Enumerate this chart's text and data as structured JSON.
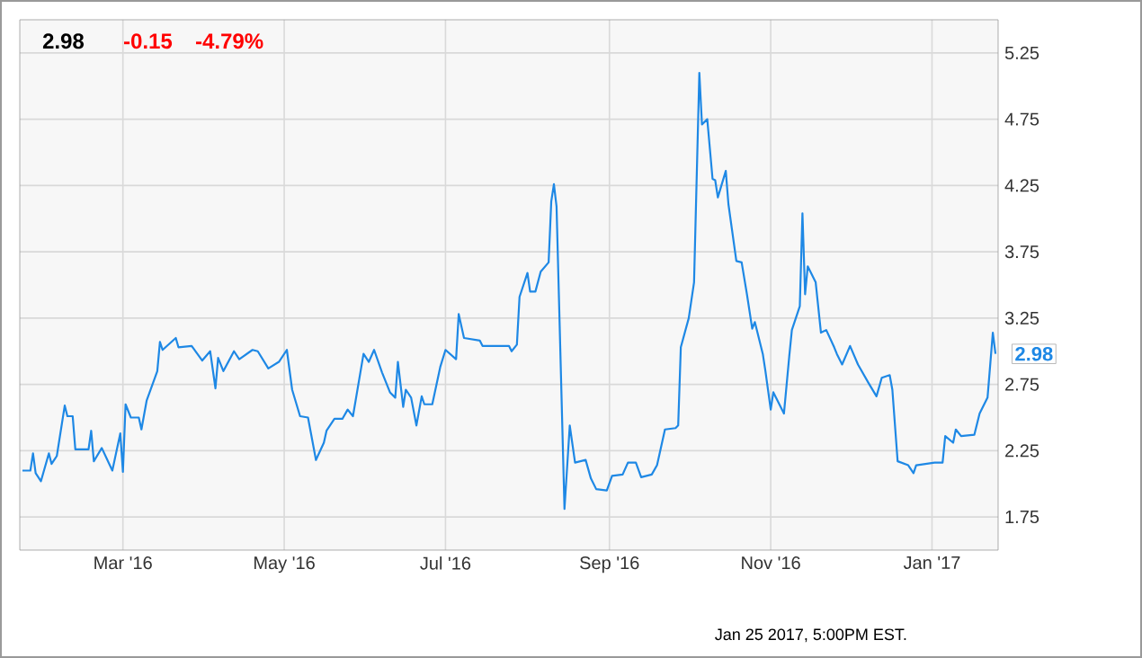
{
  "chart_data": {
    "type": "line",
    "x": [
      "2016-01-23",
      "2016-01-26",
      "2016-01-27",
      "2016-01-28",
      "2016-01-30",
      "2016-02-02",
      "2016-02-03",
      "2016-02-05",
      "2016-02-08",
      "2016-02-09",
      "2016-02-11",
      "2016-02-12",
      "2016-02-17",
      "2016-02-18",
      "2016-02-19",
      "2016-02-22",
      "2016-02-26",
      "2016-02-29",
      "2016-03-01",
      "2016-03-02",
      "2016-03-04",
      "2016-03-07",
      "2016-03-08",
      "2016-03-10",
      "2016-03-14",
      "2016-03-15",
      "2016-03-16",
      "2016-03-21",
      "2016-03-22",
      "2016-03-27",
      "2016-03-31",
      "2016-04-03",
      "2016-04-05",
      "2016-04-06",
      "2016-04-08",
      "2016-04-12",
      "2016-04-14",
      "2016-04-19",
      "2016-04-21",
      "2016-04-25",
      "2016-04-29",
      "2016-05-02",
      "2016-05-04",
      "2016-05-07",
      "2016-05-10",
      "2016-05-13",
      "2016-05-16",
      "2016-05-17",
      "2016-05-20",
      "2016-05-23",
      "2016-05-25",
      "2016-05-27",
      "2016-05-31",
      "2016-06-02",
      "2016-06-04",
      "2016-06-07",
      "2016-06-10",
      "2016-06-12",
      "2016-06-13",
      "2016-06-15",
      "2016-06-16",
      "2016-06-18",
      "2016-06-20",
      "2016-06-22",
      "2016-06-23",
      "2016-06-26",
      "2016-06-29",
      "2016-07-01",
      "2016-07-05",
      "2016-07-06",
      "2016-07-08",
      "2016-07-14",
      "2016-07-15",
      "2016-07-18",
      "2016-07-25",
      "2016-07-26",
      "2016-07-28",
      "2016-07-29",
      "2016-08-01",
      "2016-08-02",
      "2016-08-04",
      "2016-08-06",
      "2016-08-09",
      "2016-08-10",
      "2016-08-11",
      "2016-08-12",
      "2016-08-15",
      "2016-08-17",
      "2016-08-19",
      "2016-08-23",
      "2016-08-25",
      "2016-08-27",
      "2016-08-31",
      "2016-09-02",
      "2016-09-06",
      "2016-09-08",
      "2016-09-11",
      "2016-09-13",
      "2016-09-17",
      "2016-09-19",
      "2016-09-22",
      "2016-09-26",
      "2016-09-27",
      "2016-09-28",
      "2016-10-01",
      "2016-10-03",
      "2016-10-05",
      "2016-10-06",
      "2016-10-08",
      "2016-10-10",
      "2016-10-11",
      "2016-10-12",
      "2016-10-15",
      "2016-10-16",
      "2016-10-19",
      "2016-10-21",
      "2016-10-23",
      "2016-10-25",
      "2016-10-26",
      "2016-10-29",
      "2016-10-30",
      "2016-11-01",
      "2016-11-02",
      "2016-11-06",
      "2016-11-08",
      "2016-11-09",
      "2016-11-12",
      "2016-11-13",
      "2016-11-14",
      "2016-11-15",
      "2016-11-18",
      "2016-11-20",
      "2016-11-22",
      "2016-11-25",
      "2016-11-26",
      "2016-11-28",
      "2016-12-01",
      "2016-12-04",
      "2016-12-08",
      "2016-12-11",
      "2016-12-13",
      "2016-12-16",
      "2016-12-17",
      "2016-12-19",
      "2016-12-23",
      "2016-12-25",
      "2016-12-26",
      "2017-01-02",
      "2017-01-05",
      "2017-01-06",
      "2017-01-09",
      "2017-01-10",
      "2017-01-12",
      "2017-01-17",
      "2017-01-19",
      "2017-01-22",
      "2017-01-24",
      "2017-01-25"
    ],
    "series": [
      {
        "color": "#1e88e5",
        "values": [
          2.1,
          2.1,
          2.23,
          2.08,
          2.02,
          2.23,
          2.15,
          2.21,
          2.59,
          2.51,
          2.51,
          2.26,
          2.26,
          2.4,
          2.17,
          2.27,
          2.1,
          2.38,
          2.09,
          2.6,
          2.5,
          2.5,
          2.41,
          2.63,
          2.85,
          3.07,
          3.01,
          3.1,
          3.03,
          3.04,
          2.93,
          3.0,
          2.72,
          2.95,
          2.85,
          3.0,
          2.94,
          3.01,
          3.0,
          2.87,
          2.92,
          3.01,
          2.71,
          2.51,
          2.5,
          2.18,
          2.31,
          2.4,
          2.49,
          2.49,
          2.56,
          2.51,
          2.98,
          2.92,
          3.01,
          2.84,
          2.69,
          2.65,
          2.92,
          2.58,
          2.71,
          2.65,
          2.44,
          2.66,
          2.6,
          2.6,
          2.88,
          3.01,
          2.94,
          3.28,
          3.1,
          3.08,
          3.04,
          3.04,
          3.04,
          3.0,
          3.05,
          3.41,
          3.59,
          3.45,
          3.45,
          3.6,
          3.67,
          4.13,
          4.26,
          4.09,
          1.81,
          2.44,
          2.16,
          2.18,
          2.04,
          1.96,
          1.95,
          2.06,
          2.07,
          2.16,
          2.16,
          2.05,
          2.07,
          2.14,
          2.41,
          2.42,
          2.44,
          3.03,
          3.25,
          3.52,
          5.1,
          4.71,
          4.75,
          4.3,
          4.29,
          4.16,
          4.36,
          4.11,
          3.68,
          3.67,
          3.43,
          3.17,
          3.22,
          2.98,
          2.85,
          2.56,
          2.69,
          2.53,
          2.96,
          3.16,
          3.34,
          4.04,
          3.43,
          3.64,
          3.52,
          3.14,
          3.16,
          3.03,
          2.98,
          2.9,
          3.04,
          2.9,
          2.76,
          2.66,
          2.8,
          2.82,
          2.71,
          2.17,
          2.14,
          2.08,
          2.14,
          2.16,
          2.16,
          2.36,
          2.31,
          2.41,
          2.36,
          2.37,
          2.53,
          2.65,
          3.14,
          2.98
        ]
      }
    ],
    "xlim": [
      "2016-01-22",
      "2017-01-26"
    ],
    "xticks": [
      {
        "value": "2016-03-01",
        "label": "Mar '16"
      },
      {
        "value": "2016-05-01",
        "label": "May '16"
      },
      {
        "value": "2016-07-01",
        "label": "Jul '16"
      },
      {
        "value": "2016-09-01",
        "label": "Sep '16"
      },
      {
        "value": "2016-11-01",
        "label": "Nov '16"
      },
      {
        "value": "2017-01-01",
        "label": "Jan '17"
      }
    ],
    "ylim": [
      1.5,
      5.5
    ],
    "yticks": [
      1.75,
      2.25,
      2.75,
      3.25,
      3.75,
      4.25,
      4.75,
      5.25
    ],
    "grid": true,
    "annotations": [
      "2.98",
      "-0.15",
      "-4.79%",
      {
        "text": "2.98",
        "x": "2017-01-25",
        "y": 2.98
      },
      "Jan 25 2017, 5:00PM EST."
    ]
  }
}
